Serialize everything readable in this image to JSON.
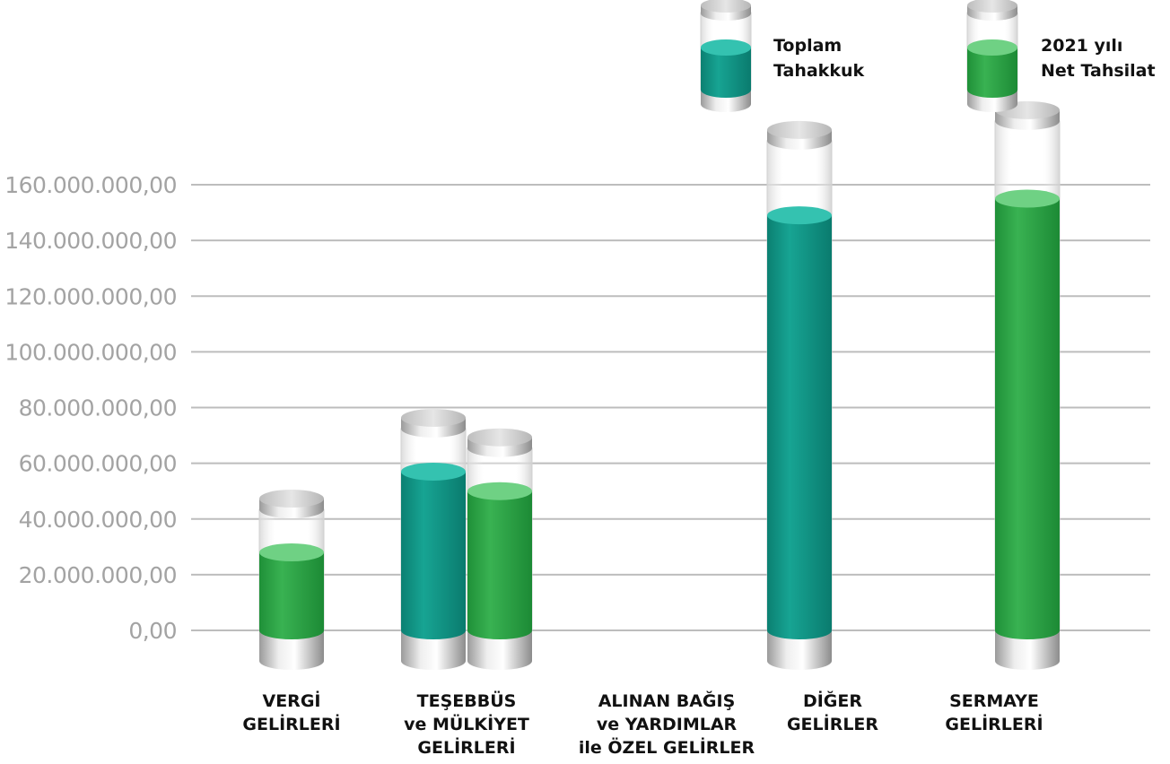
{
  "chart_data": {
    "type": "bar",
    "title": "",
    "xlabel": "",
    "ylabel": "",
    "ylim": [
      0,
      160000000
    ],
    "yticks": [
      {
        "value": 0,
        "label": "0,00"
      },
      {
        "value": 20000000,
        "label": "20.000.000,00"
      },
      {
        "value": 40000000,
        "label": "40.000.000,00"
      },
      {
        "value": 60000000,
        "label": "60.000.000,00"
      },
      {
        "value": 80000000,
        "label": "80.000.000,00"
      },
      {
        "value": 100000000,
        "label": "100.000.000,00"
      },
      {
        "value": 120000000,
        "label": "120.000.000,00"
      },
      {
        "value": 140000000,
        "label": "140.000.000,00"
      },
      {
        "value": 160000000,
        "label": "160.000.000,00"
      }
    ],
    "categories": [
      [
        "VERGİ",
        "GELİRLERİ"
      ],
      [
        "TEŞEBBÜS",
        "ve MÜLKİYET",
        "GELİRLERİ"
      ],
      [
        "ALINAN BAĞIŞ",
        "ve YARDIMLAR",
        "ile ÖZEL GELİRLER"
      ],
      [
        "DİĞER",
        "GELİRLER"
      ],
      [
        "SERMAYE",
        "GELİRLERİ"
      ]
    ],
    "series": [
      {
        "name": "Toplam Tahakkuk",
        "legend_lines": [
          "Toplam",
          "Tahakkuk"
        ],
        "color": "#0d9a8a",
        "values": [
          null,
          57000000,
          null,
          149000000,
          null
        ]
      },
      {
        "name": "2021 yılı Net Tahsilat",
        "legend_lines": [
          "2021 yılı",
          "Net Tahsilat"
        ],
        "color": "#2ea84a",
        "values": [
          28000000,
          50000000,
          null,
          null,
          155000000
        ]
      }
    ],
    "grid": true,
    "legend": "top-right"
  }
}
